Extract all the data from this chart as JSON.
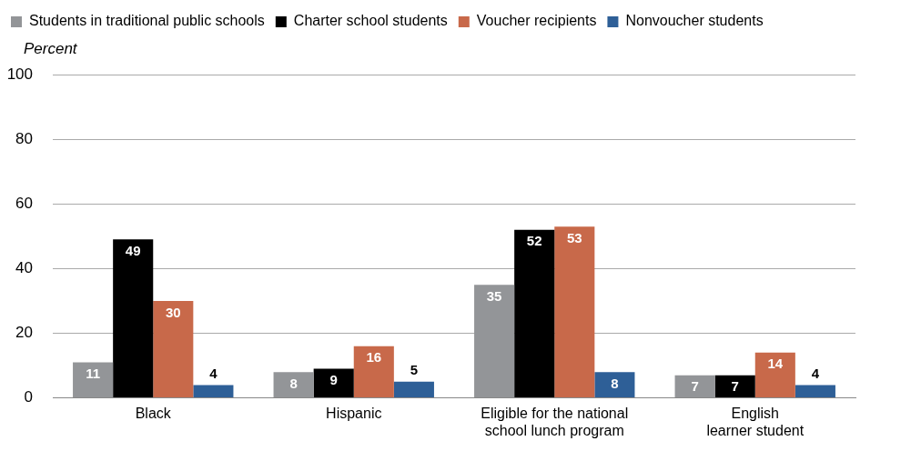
{
  "chart_data": {
    "type": "bar",
    "ylabel": "Percent",
    "categories": [
      "Black",
      "Hispanic",
      "Eligible for the national\nschool lunch program",
      "English\nlearner student"
    ],
    "series": [
      {
        "name": "Students in traditional public schools",
        "color": "#939598",
        "values": [
          11,
          8,
          35,
          7
        ]
      },
      {
        "name": "Charter school students",
        "color": "#000000",
        "values": [
          49,
          9,
          52,
          7
        ]
      },
      {
        "name": "Voucher recipients",
        "color": "#c8694a",
        "values": [
          30,
          16,
          53,
          14
        ]
      },
      {
        "name": "Nonvoucher students",
        "color": "#2e5f97",
        "values": [
          4,
          5,
          8,
          4
        ]
      }
    ],
    "ylim": [
      0,
      100
    ],
    "yticks": [
      0,
      20,
      40,
      60,
      80,
      100
    ],
    "grid": "y",
    "legend": "top left",
    "data_labels": true
  }
}
